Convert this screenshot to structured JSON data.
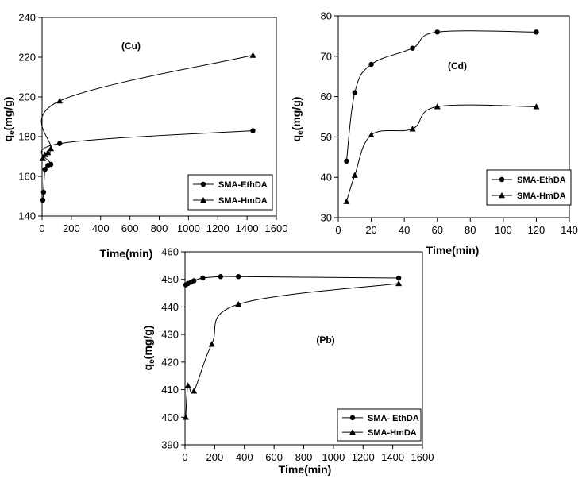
{
  "chart_data": [
    {
      "id": "cu",
      "type": "scatter",
      "annotation": "(Cu)",
      "xlabel": "Time(min)",
      "ylabel_main": "q",
      "ylabel_sub": "e",
      "ylabel_rest": "(mg/g)",
      "xlim": [
        0,
        1600
      ],
      "ylim": [
        140,
        240
      ],
      "xticks": [
        0,
        200,
        400,
        600,
        800,
        1000,
        1200,
        1400,
        1600
      ],
      "yticks": [
        140,
        160,
        180,
        200,
        220,
        240
      ],
      "legend_position": "bottom-right",
      "series": [
        {
          "name": "SMA-EthDA",
          "marker": "circle",
          "x": [
            5,
            10,
            20,
            40,
            60,
            120,
            1440
          ],
          "y": [
            148,
            152,
            163.5,
            165.5,
            166,
            176.5,
            183
          ]
        },
        {
          "name": "SMA-HmDA",
          "marker": "triangle",
          "x": [
            5,
            20,
            40,
            60,
            120,
            1440
          ],
          "y": [
            169,
            171,
            172,
            174,
            198,
            221
          ]
        }
      ]
    },
    {
      "id": "cd",
      "type": "scatter",
      "annotation": "(Cd)",
      "xlabel": "Time(min)",
      "ylabel_main": "q",
      "ylabel_sub": "e",
      "ylabel_rest": "(mg/g)",
      "xlim": [
        0,
        140
      ],
      "ylim": [
        30,
        80
      ],
      "xticks": [
        0,
        20,
        40,
        60,
        80,
        100,
        120,
        140
      ],
      "yticks": [
        30,
        40,
        50,
        60,
        70,
        80
      ],
      "legend_position": "bottom-right",
      "series": [
        {
          "name": "SMA-EthDA",
          "marker": "circle",
          "x": [
            5,
            10,
            20,
            45,
            60,
            120
          ],
          "y": [
            44,
            61,
            68,
            72,
            76,
            76
          ]
        },
        {
          "name": "SMA-HmDA",
          "marker": "triangle",
          "x": [
            5,
            10,
            20,
            45,
            60,
            120
          ],
          "y": [
            34,
            40.5,
            50.5,
            52,
            57.5,
            57.5
          ]
        }
      ]
    },
    {
      "id": "pb",
      "type": "scatter",
      "annotation": "(Pb)",
      "xlabel": "Time(min)",
      "ylabel_main": "q",
      "ylabel_sub": "e",
      "ylabel_rest": "(mg/g)",
      "xlim": [
        0,
        1600
      ],
      "ylim": [
        390,
        460
      ],
      "xticks": [
        0,
        200,
        400,
        600,
        800,
        1000,
        1200,
        1400,
        1600
      ],
      "yticks": [
        390,
        400,
        410,
        420,
        430,
        440,
        450,
        460
      ],
      "legend_position": "bottom-right",
      "series": [
        {
          "name": "SMA- EthDA",
          "marker": "circle",
          "x": [
            5,
            20,
            40,
            60,
            120,
            240,
            360,
            1440
          ],
          "y": [
            448,
            448.5,
            449,
            449.5,
            450.5,
            451,
            451,
            450.5
          ]
        },
        {
          "name": "SMA-HmDA",
          "marker": "triangle",
          "x": [
            5,
            20,
            60,
            180,
            360,
            1440
          ],
          "y": [
            400,
            411.5,
            409.5,
            426.5,
            441,
            448.5
          ]
        }
      ]
    }
  ]
}
